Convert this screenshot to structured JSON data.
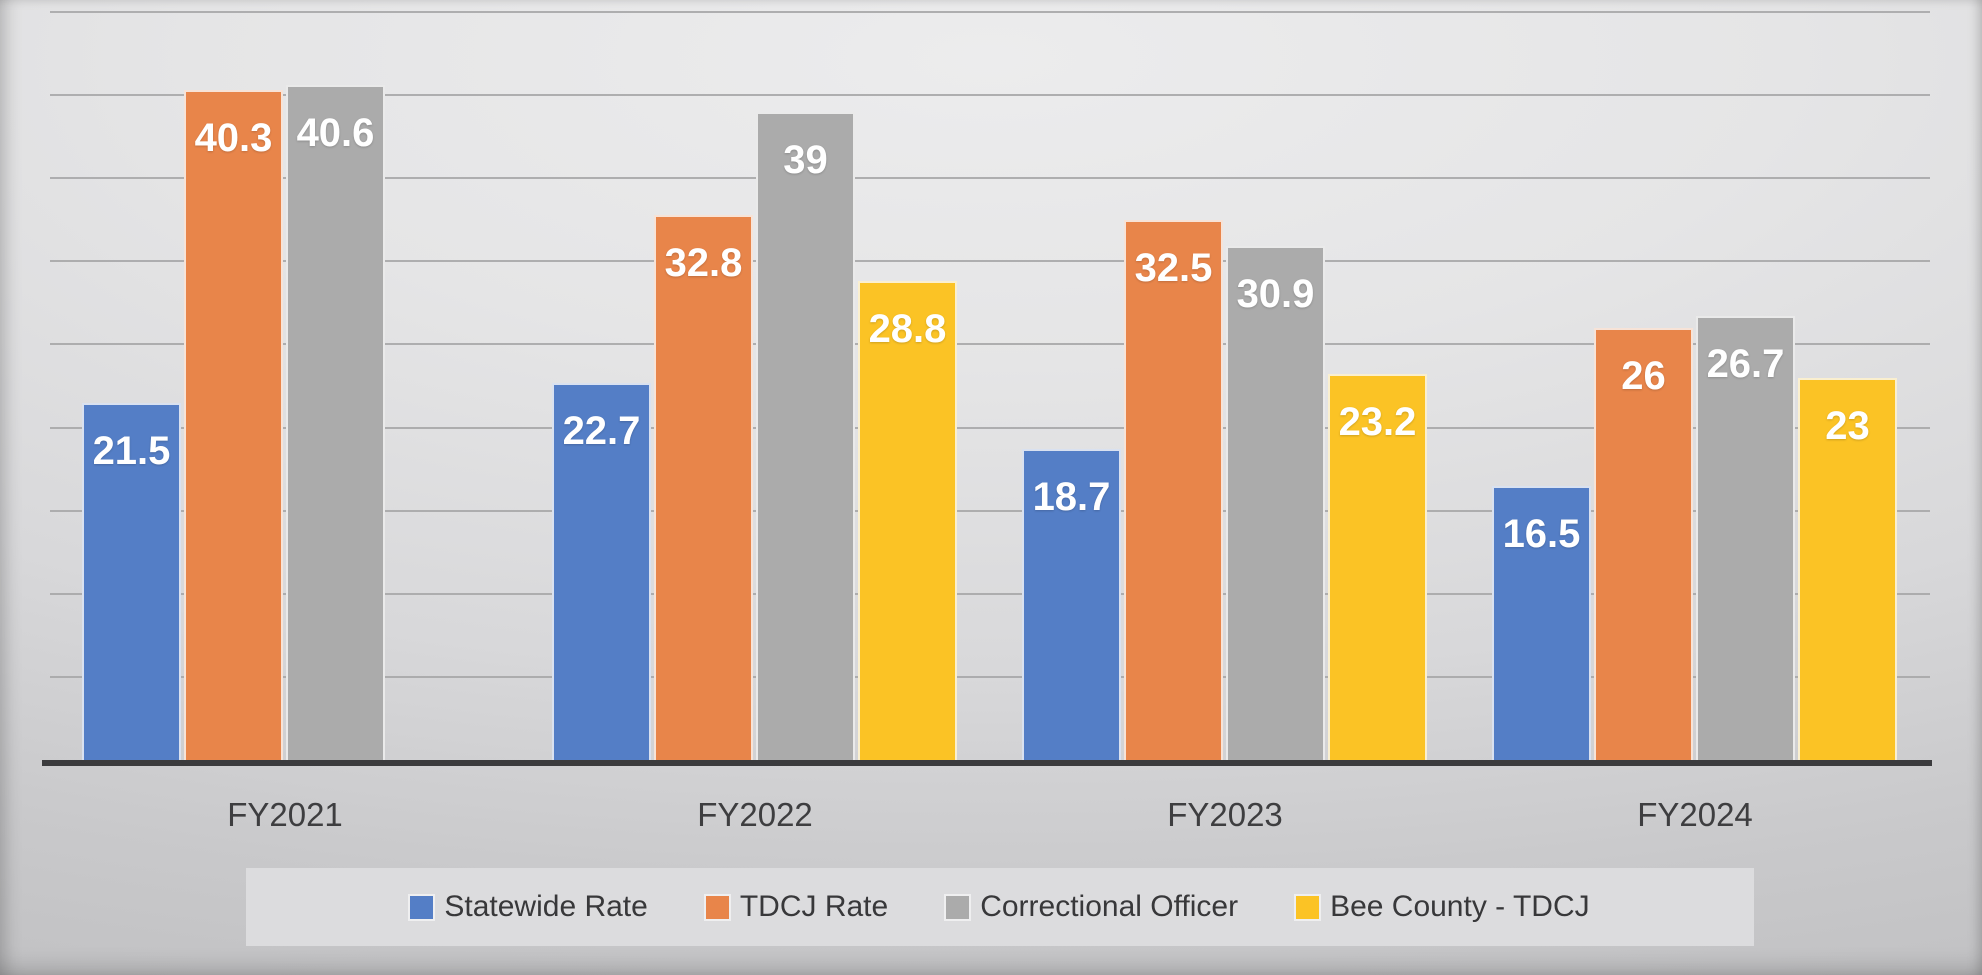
{
  "chart_data": {
    "type": "bar",
    "title": "",
    "xlabel": "",
    "ylabel": "",
    "categories": [
      "FY2021",
      "FY2022",
      "FY2023",
      "FY2024"
    ],
    "series": [
      {
        "name": "Statewide Rate",
        "color": "#547EC6",
        "values": [
          21.5,
          22.7,
          18.7,
          16.5
        ],
        "labels": [
          "21.5",
          "22.7",
          "18.7",
          "16.5"
        ]
      },
      {
        "name": "TDCJ Rate",
        "color": "#E8854A",
        "values": [
          40.3,
          32.8,
          32.5,
          26
        ],
        "labels": [
          "40.3",
          "32.8",
          "32.5",
          "26"
        ]
      },
      {
        "name": "Correctional Officer",
        "color": "#ABABAB",
        "values": [
          40.6,
          39,
          30.9,
          26.7
        ],
        "labels": [
          "40.6",
          "39",
          "30.9",
          "26.7"
        ]
      },
      {
        "name": "Bee County - TDCJ",
        "color": "#FBC325",
        "values": [
          null,
          28.8,
          23.2,
          23
        ],
        "labels": [
          null,
          "28.8",
          "23.2",
          "23"
        ]
      }
    ],
    "ylim": [
      0,
      45
    ],
    "grid_step": 5,
    "grid": true,
    "y_tick_labels_visible": false,
    "legend_position": "bottom",
    "data_label_position": "inside-end",
    "data_label_color": "#FFFFFF",
    "grid_color": "#A7A7A9",
    "axis_color": "#3B3B3D",
    "category_label_color": "#3E3E40",
    "legend_background": "#DCDCDE",
    "legend_text_color": "#38383A"
  }
}
